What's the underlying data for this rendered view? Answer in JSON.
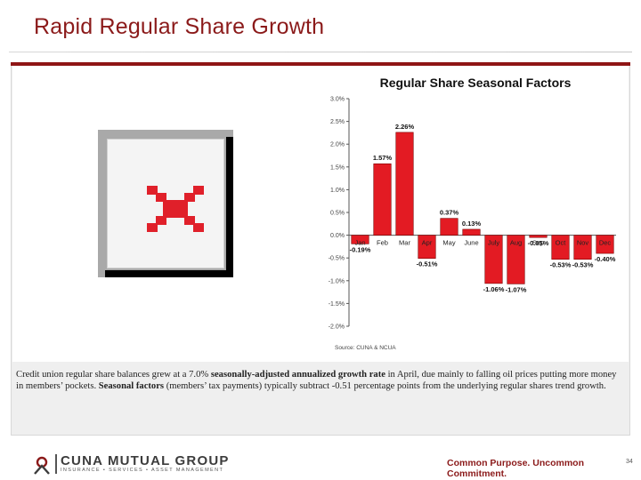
{
  "slide": {
    "title": "Rapid Regular Share Growth"
  },
  "caption": {
    "part1": "Credit union regular share balances grew at a 7.0% ",
    "bold1": "seasonally-adjusted annualized growth rate",
    "part2": " in April, due mainly to falling oil prices putting more money in members’ pockets. ",
    "bold2": "Seasonal factors",
    "part3": " (members’ tax payments) typically subtract -0.51 percentage points from the underlying regular shares trend growth."
  },
  "footer": {
    "logo_text": "CUNA MUTUAL GROUP",
    "logo_sub": "INSURANCE • SERVICES • ASSET MANAGEMENT",
    "tagline": "Common Purpose. Uncommon Commitment.",
    "page_number": "34"
  },
  "colors": {
    "brand": "#8b1a1a",
    "bar_fill": "#e31b23",
    "bar_stroke": "#7a0000"
  },
  "chart_data": {
    "type": "bar",
    "title": "Regular Share Seasonal Factors",
    "source": "Source: CUNA & NCUA",
    "categories": [
      "Jan",
      "Feb",
      "Mar",
      "Apr",
      "May",
      "June",
      "July",
      "Aug",
      "Sep",
      "Oct",
      "Nov",
      "Dec"
    ],
    "values": [
      -0.19,
      1.57,
      2.26,
      -0.51,
      0.37,
      0.13,
      -1.06,
      -1.07,
      -0.05,
      -0.53,
      -0.53,
      -0.4
    ],
    "data_labels": [
      "-0.19%",
      "1.57%",
      "2.26%",
      "-0.51%",
      "0.37%",
      "0.13%",
      "-1.06%",
      "-1.07%",
      "-0.05%",
      "-0.53%",
      "-0.53%",
      "-0.40%"
    ],
    "yticks": [
      "3.0%",
      "2.5%",
      "2.0%",
      "1.5%",
      "1.0%",
      "0.5%",
      "0.0%",
      "-0.5%",
      "-1.0%",
      "-1.5%",
      "-2.0%"
    ],
    "ylim": [
      -2.0,
      3.0
    ],
    "xlabel": "",
    "ylabel": "",
    "grid": false,
    "legend": "none"
  }
}
